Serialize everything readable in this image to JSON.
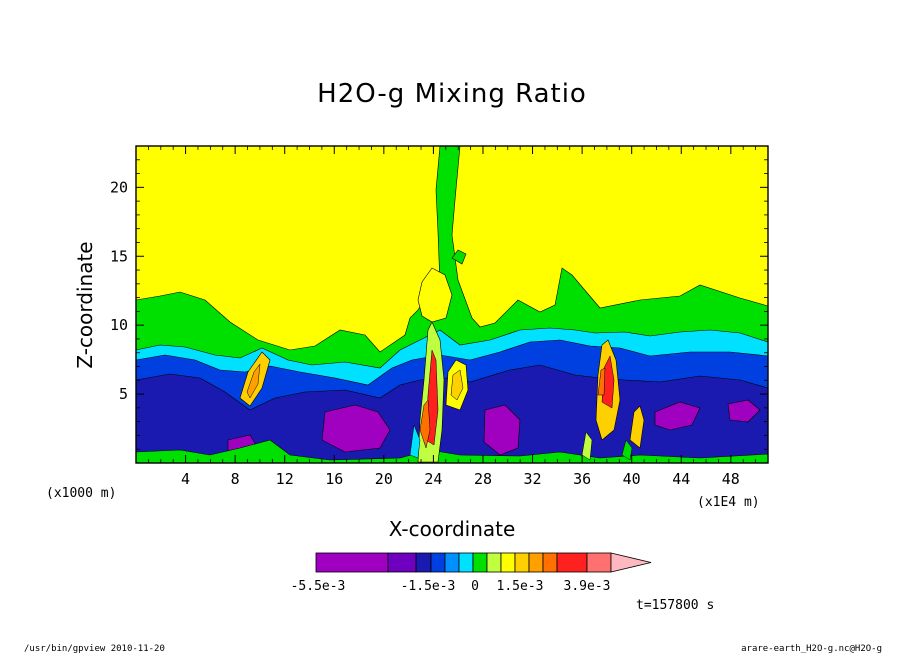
{
  "chart_data": {
    "type": "heatmap",
    "title": "H2O-g Mixing Ratio",
    "xlabel": "X-coordinate",
    "ylabel": "Z-coordinate",
    "x_unit_left": "(x1000 m)",
    "x_unit_right": "(x1E4 m)",
    "xlim": [
      0,
      51
    ],
    "ylim": [
      0,
      23
    ],
    "x_ticks": [
      4,
      8,
      12,
      16,
      20,
      24,
      28,
      32,
      36,
      40,
      44,
      48
    ],
    "y_ticks": [
      5,
      10,
      15,
      20
    ],
    "colorbar": {
      "colors": [
        "#a000c0",
        "#7000c0",
        "#1a1ab0",
        "#0040e0",
        "#0090ff",
        "#00e0ff",
        "#00e000",
        "#c0ff40",
        "#ffff00",
        "#ffd000",
        "#ffa000",
        "#ff7000",
        "#ff2020",
        "#ff7070",
        "#ffb8c0"
      ],
      "labels": [
        "-5.5e-3",
        "-1.5e-3",
        "0",
        "1.5e-3",
        "3.9e-3"
      ]
    },
    "time_label": "t=157800 s",
    "footer_left": "/usr/bin/gpview   2010-11-20",
    "footer_right": "arare-earth_H2O-g.nc@H2O-g"
  }
}
